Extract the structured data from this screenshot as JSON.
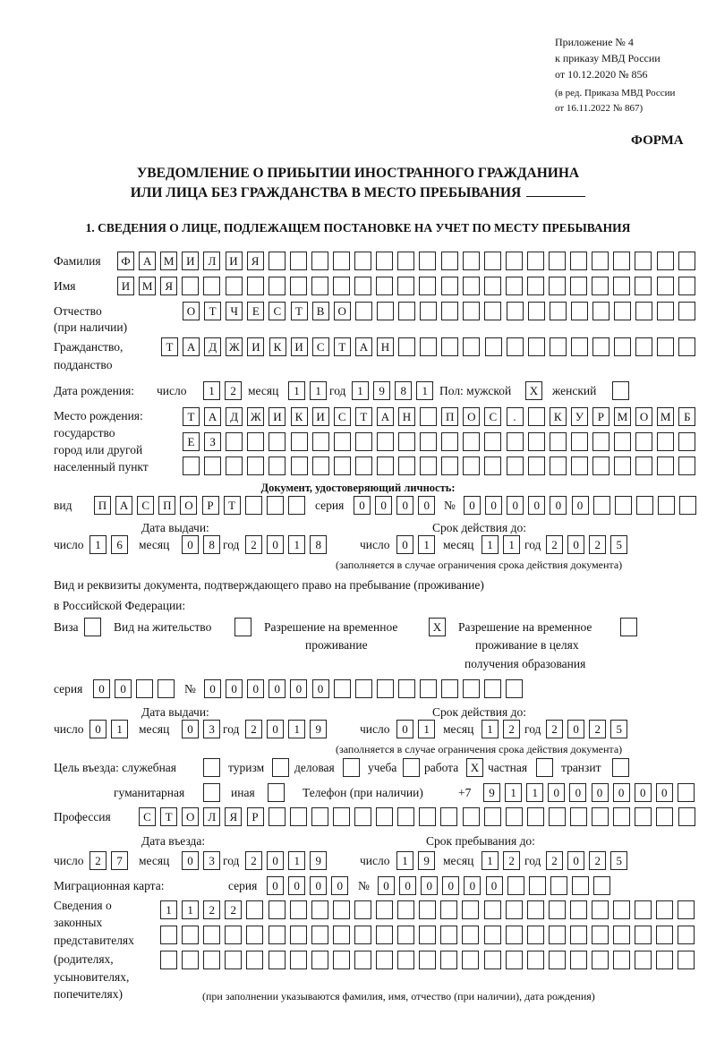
{
  "header": {
    "appendix": "Приложение № 4",
    "order": "к приказу МВД России",
    "order_date": "от 10.12.2020 № 856",
    "edition_1": "(в ред. Приказа МВД России",
    "edition_2": "от 16.11.2022 № 867)",
    "form_label": "ФОРМА",
    "title_1": "УВЕДОМЛЕНИЕ О ПРИБЫТИИ ИНОСТРАННОГО ГРАЖДАНИНА",
    "title_2": "ИЛИ ЛИЦА БЕЗ ГРАЖДАНСТВА В МЕСТО ПРЕБЫВАНИЯ",
    "section_1": "1. СВЕДЕНИЯ О ЛИЦЕ, ПОДЛЕЖАЩЕМ ПОСТАНОВКЕ НА УЧЕТ ПО МЕСТУ ПРЕБЫВАНИЯ"
  },
  "person": {
    "surname_label": "Фамилия",
    "surname": "ФАМИЛИЯ",
    "name_label": "Имя",
    "name": "ИМЯ",
    "patronymic_label": "Отчество",
    "patronymic_note": "(при наличии)",
    "patronymic": "ОТЧЕСТВО",
    "citizenship_label_1": "Гражданство,",
    "citizenship_label_2": "подданство",
    "citizenship": "ТАДЖИКИСТАН",
    "birth_label": "Дата рождения:",
    "day_label": "число",
    "month_label": "месяц",
    "year_label": "год",
    "birth_day": "12",
    "birth_month": "11",
    "birth_year": "1981",
    "sex_label": "Пол: мужской",
    "male": "X",
    "female_label": "женский",
    "female": "",
    "birthplace_label_1": "Место рождения:",
    "birthplace_label_2": "государство",
    "birthplace_label_3": "город или другой",
    "birthplace_label_4": "населенный пункт",
    "birthplace_1": "ТАДЖИКИСТАН ПОС. КУРМОМБ",
    "birthplace_2": "ЕЗ",
    "birthplace_3": ""
  },
  "id_doc": {
    "heading": "Документ, удостоверяющий личность:",
    "type_label": "вид",
    "type": "ПАСПОРТ",
    "series_label": "серия",
    "series": "0000",
    "number_label": "№",
    "number": "000000",
    "issue_label": "Дата выдачи:",
    "valid_label": "Срок действия до:",
    "issue_day": "16",
    "issue_month": "08",
    "issue_year": "2018",
    "valid_day": "01",
    "valid_month": "11",
    "valid_year": "2025",
    "valid_note": "(заполняется в случае ограничения срока действия документа)"
  },
  "stay_doc": {
    "heading_1": "Вид и реквизиты документа, подтверждающего право на пребывание (проживание)",
    "heading_2": "в Российской Федерации:",
    "visa_label": "Виза",
    "visa": "",
    "residence_label": "Вид на жительство",
    "residence": "",
    "temp_label_1": "Разрешение на временное",
    "temp_label_2": "проживание",
    "temp": "X",
    "edu_label_1": "Разрешение на временное",
    "edu_label_2": "проживание в целях",
    "edu_label_3": "получения образования",
    "edu": "",
    "series_label": "серия",
    "series": "00",
    "number_label": "№",
    "number": "000000",
    "issue_label": "Дата выдачи:",
    "valid_label": "Срок действия до:",
    "issue_day": "01",
    "issue_month": "03",
    "issue_year": "2019",
    "valid_day": "01",
    "valid_month": "12",
    "valid_year": "2025",
    "valid_note": "(заполняется в случае ограничения срока действия документа)"
  },
  "purpose": {
    "label": "Цель въезда: служебная",
    "official": "",
    "tourism_label": "туризм",
    "tourism": "",
    "business_label": "деловая",
    "business": "",
    "study_label": "учеба",
    "study": "",
    "work_label": "работа",
    "work": "X",
    "private_label": "частная",
    "private": "",
    "transit_label": "транзит",
    "transit": "",
    "humanitarian_label": "гуманитарная",
    "humanitarian": "",
    "other_label": "иная",
    "other": "",
    "phone_label": "Телефон (при наличии)",
    "phone_prefix": "+7",
    "phone": "911000000"
  },
  "profession": {
    "label": "Профессия",
    "value": "СТОЛЯР"
  },
  "entry": {
    "entry_label": "Дата въезда:",
    "stay_label": "Срок пребывания до:",
    "entry_day": "27",
    "entry_month": "03",
    "entry_year": "2019",
    "stay_day": "19",
    "stay_month": "12",
    "stay_year": "2025"
  },
  "migration_card": {
    "label": "Миграционная карта:",
    "series_label": "серия",
    "series": "0000",
    "number_label": "№",
    "number": "000000"
  },
  "representatives": {
    "label_1": "Сведения о",
    "label_2": "законных",
    "label_3": "представителях",
    "label_4": "(родителях,",
    "label_5": "усыновителях,",
    "label_6": "попечителях)",
    "row_1": "1122",
    "row_2": "",
    "row_3": "",
    "note": "(при заполнении указываются фамилия, имя, отчество (при наличии), дата рождения)"
  }
}
